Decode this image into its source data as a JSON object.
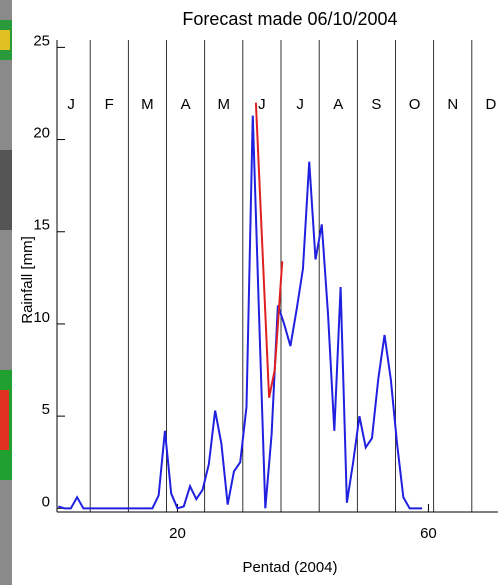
{
  "chart_data": {
    "type": "line",
    "title": "Forecast made 06/10/2004",
    "xlabel": "Pentad (2004)",
    "ylabel": "Rainfall [mm]",
    "months": [
      "J",
      "F",
      "M",
      "A",
      "M",
      "J",
      "J",
      "A",
      "S",
      "O",
      "N",
      "D"
    ],
    "xlim": [
      0,
      73
    ],
    "ylim": [
      -0.2,
      25.4
    ],
    "xticks": [
      20,
      60
    ],
    "yticks": [
      0,
      5,
      10,
      15,
      20,
      25
    ],
    "series": [
      {
        "color": "#2020e0",
        "x": [
          1,
          2,
          3,
          4,
          5,
          6,
          7,
          8,
          9,
          10,
          11,
          12,
          13,
          14,
          15,
          16,
          17,
          18,
          19,
          20,
          21,
          22,
          23,
          24,
          25,
          26,
          27,
          28,
          29,
          30,
          31,
          32,
          33,
          34,
          35,
          36,
          37,
          38,
          39,
          40,
          41,
          42,
          43,
          44,
          45,
          46,
          47,
          48,
          49,
          50,
          51,
          52,
          53,
          54,
          55,
          56,
          57,
          58,
          59
        ],
        "values": [
          0.1,
          0,
          0,
          0.6,
          0,
          0,
          0,
          0,
          0,
          0,
          0,
          0,
          0,
          0,
          0,
          0,
          0.7,
          4.2,
          0.8,
          0,
          0.1,
          1.2,
          0.5,
          1.0,
          2.4,
          5.3,
          3.5,
          0.2,
          2.0,
          2.5,
          5.5,
          21.3,
          10.5,
          0,
          4.0,
          11.0,
          10.0,
          8.8,
          10.8,
          13.0,
          18.8,
          13.5,
          15.4,
          10.5,
          4.2,
          12.0,
          0.3,
          2.5,
          5.0,
          3.3,
          3.8,
          7.0,
          9.4,
          7.0,
          3.5,
          0.6,
          0,
          0,
          0
        ]
      },
      {
        "color": "#e02020",
        "x": [
          32.5,
          34.6,
          35.5,
          36.7
        ],
        "values": [
          22.0,
          6.0,
          7.5,
          13.4
        ]
      }
    ]
  }
}
